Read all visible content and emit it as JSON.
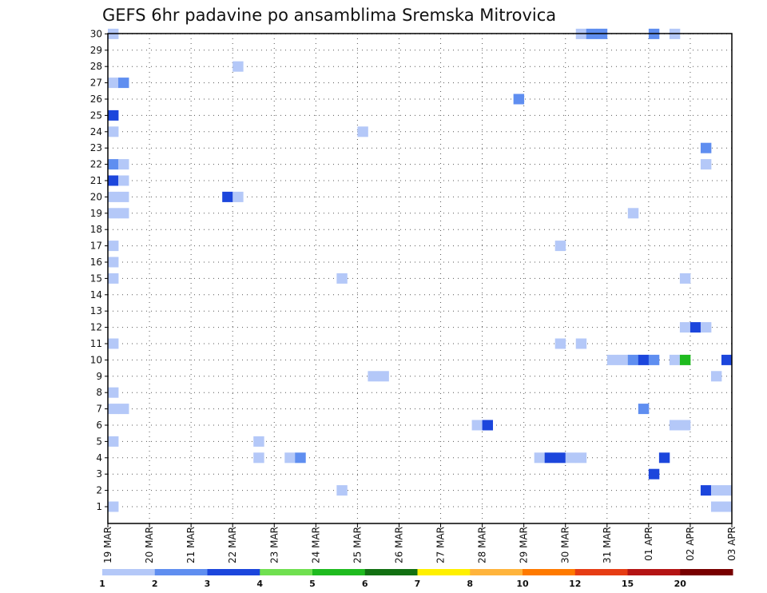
{
  "chart_data": {
    "type": "heatmap",
    "title": "GEFS 6hr padavine po ansamblima Sremska Mitrovica",
    "x_tick_labels": [
      "19 MAR",
      "20 MAR",
      "21 MAR",
      "22 MAR",
      "23 MAR",
      "24 MAR",
      "25 MAR",
      "26 MAR",
      "27 MAR",
      "28 MAR",
      "29 MAR",
      "30 MAR",
      "31 MAR",
      "01 APR",
      "02 APR",
      "03 APR"
    ],
    "y_tick_labels": [
      "1",
      "2",
      "3",
      "4",
      "5",
      "6",
      "7",
      "8",
      "9",
      "10",
      "11",
      "12",
      "13",
      "14",
      "15",
      "16",
      "17",
      "18",
      "19",
      "20",
      "21",
      "22",
      "23",
      "24",
      "25",
      "26",
      "27",
      "28",
      "29",
      "30"
    ],
    "x_unit": "6-hour step from 19 MAR",
    "ylim": [
      1,
      30
    ],
    "grid": true,
    "legend": {
      "placement": "bottom",
      "bins": [
        {
          "color": "#b4c8f8",
          "label": "1"
        },
        {
          "color": "#5f8ef0",
          "label": "2"
        },
        {
          "color": "#1c46dc",
          "label": "3"
        },
        {
          "color": "#70e050",
          "label": "4"
        },
        {
          "color": "#1fbb1f",
          "label": "5"
        },
        {
          "color": "#127012",
          "label": "6"
        },
        {
          "color": "#fff000",
          "label": "7"
        },
        {
          "color": "#ffb43c",
          "label": "8"
        },
        {
          "color": "#ff7a00",
          "label": "10"
        },
        {
          "color": "#e63c14",
          "label": "12"
        },
        {
          "color": "#b41414",
          "label": "15"
        },
        {
          "color": "#780000",
          "label": "20"
        }
      ]
    },
    "cells": [
      {
        "x": 1,
        "y": 30,
        "v": 1
      },
      {
        "x": 1,
        "y": 27,
        "v": 1
      },
      {
        "x": 2,
        "y": 27,
        "v": 2
      },
      {
        "x": 1,
        "y": 25,
        "v": 3
      },
      {
        "x": 1,
        "y": 24,
        "v": 1
      },
      {
        "x": 1,
        "y": 22,
        "v": 2
      },
      {
        "x": 2,
        "y": 22,
        "v": 1
      },
      {
        "x": 1,
        "y": 21,
        "v": 3
      },
      {
        "x": 2,
        "y": 21,
        "v": 1
      },
      {
        "x": 1,
        "y": 20,
        "v": 1
      },
      {
        "x": 2,
        "y": 20,
        "v": 1
      },
      {
        "x": 1,
        "y": 19,
        "v": 1
      },
      {
        "x": 2,
        "y": 19,
        "v": 1
      },
      {
        "x": 1,
        "y": 17,
        "v": 1
      },
      {
        "x": 1,
        "y": 16,
        "v": 1
      },
      {
        "x": 1,
        "y": 15,
        "v": 1
      },
      {
        "x": 1,
        "y": 11,
        "v": 1
      },
      {
        "x": 1,
        "y": 8,
        "v": 1
      },
      {
        "x": 1,
        "y": 7,
        "v": 1
      },
      {
        "x": 2,
        "y": 7,
        "v": 1
      },
      {
        "x": 1,
        "y": 5,
        "v": 1
      },
      {
        "x": 1,
        "y": 1,
        "v": 1
      },
      {
        "x": 12,
        "y": 20,
        "v": 3
      },
      {
        "x": 13,
        "y": 20,
        "v": 1
      },
      {
        "x": 13,
        "y": 28,
        "v": 1
      },
      {
        "x": 15,
        "y": 5,
        "v": 1
      },
      {
        "x": 15,
        "y": 4,
        "v": 1
      },
      {
        "x": 18,
        "y": 4,
        "v": 1
      },
      {
        "x": 19,
        "y": 4,
        "v": 2
      },
      {
        "x": 23,
        "y": 15,
        "v": 1
      },
      {
        "x": 23,
        "y": 2,
        "v": 1
      },
      {
        "x": 25,
        "y": 24,
        "v": 1
      },
      {
        "x": 26,
        "y": 9,
        "v": 1
      },
      {
        "x": 27,
        "y": 9,
        "v": 1
      },
      {
        "x": 36,
        "y": 6,
        "v": 1
      },
      {
        "x": 37,
        "y": 6,
        "v": 3
      },
      {
        "x": 40,
        "y": 26,
        "v": 2
      },
      {
        "x": 42,
        "y": 4,
        "v": 1
      },
      {
        "x": 43,
        "y": 4,
        "v": 3
      },
      {
        "x": 44,
        "y": 4,
        "v": 3
      },
      {
        "x": 45,
        "y": 4,
        "v": 1
      },
      {
        "x": 46,
        "y": 4,
        "v": 1
      },
      {
        "x": 44,
        "y": 17,
        "v": 1
      },
      {
        "x": 44,
        "y": 11,
        "v": 1
      },
      {
        "x": 46,
        "y": 30,
        "v": 1
      },
      {
        "x": 47,
        "y": 30,
        "v": 2
      },
      {
        "x": 48,
        "y": 30,
        "v": 2
      },
      {
        "x": 46,
        "y": 11,
        "v": 1
      },
      {
        "x": 49,
        "y": 10,
        "v": 1
      },
      {
        "x": 50,
        "y": 10,
        "v": 1
      },
      {
        "x": 51,
        "y": 10,
        "v": 2
      },
      {
        "x": 52,
        "y": 10,
        "v": 3
      },
      {
        "x": 53,
        "y": 10,
        "v": 2
      },
      {
        "x": 55,
        "y": 10,
        "v": 1
      },
      {
        "x": 56,
        "y": 10,
        "v": 5
      },
      {
        "x": 60,
        "y": 10,
        "v": 3
      },
      {
        "x": 51,
        "y": 19,
        "v": 1
      },
      {
        "x": 52,
        "y": 7,
        "v": 2
      },
      {
        "x": 53,
        "y": 30,
        "v": 2
      },
      {
        "x": 53,
        "y": 3,
        "v": 3
      },
      {
        "x": 54,
        "y": 4,
        "v": 3
      },
      {
        "x": 55,
        "y": 30,
        "v": 1
      },
      {
        "x": 55,
        "y": 6,
        "v": 1
      },
      {
        "x": 56,
        "y": 6,
        "v": 1
      },
      {
        "x": 56,
        "y": 15,
        "v": 1
      },
      {
        "x": 56,
        "y": 12,
        "v": 1
      },
      {
        "x": 57,
        "y": 12,
        "v": 3
      },
      {
        "x": 58,
        "y": 12,
        "v": 1
      },
      {
        "x": 58,
        "y": 23,
        "v": 2
      },
      {
        "x": 58,
        "y": 22,
        "v": 1
      },
      {
        "x": 59,
        "y": 9,
        "v": 1
      },
      {
        "x": 58,
        "y": 2,
        "v": 3
      },
      {
        "x": 59,
        "y": 2,
        "v": 1
      },
      {
        "x": 60,
        "y": 2,
        "v": 1
      },
      {
        "x": 59,
        "y": 1,
        "v": 1
      },
      {
        "x": 60,
        "y": 1,
        "v": 1
      }
    ]
  }
}
